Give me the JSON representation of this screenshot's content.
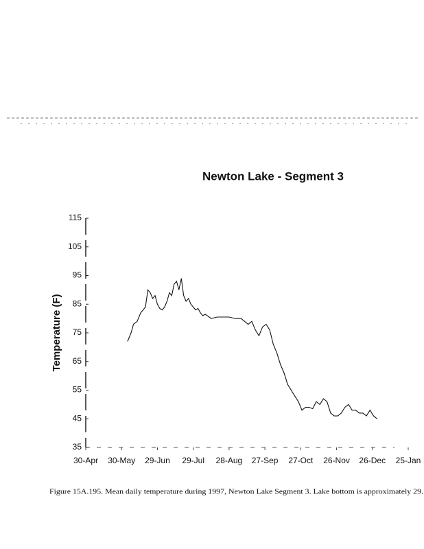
{
  "chart_data": {
    "type": "line",
    "title": "Newton Lake - Segment 3",
    "y_label": "Temperature (F)",
    "caption": "Figure 15A.195. Mean daily temperature during 1997, Newton Lake Segment 3.  Lake bottom is approximately 29.",
    "xlim": [
      0,
      270
    ],
    "xticks": [
      {
        "value": 0,
        "label": "30-Apr"
      },
      {
        "value": 30,
        "label": "30-May"
      },
      {
        "value": 60,
        "label": "29-Jun"
      },
      {
        "value": 90,
        "label": "29-Jul"
      },
      {
        "value": 120,
        "label": "28-Aug"
      },
      {
        "value": 150,
        "label": "27-Sep"
      },
      {
        "value": 180,
        "label": "27-Oct"
      },
      {
        "value": 210,
        "label": "26-Nov"
      },
      {
        "value": 240,
        "label": "26-Dec"
      },
      {
        "value": 270,
        "label": "25-Jan"
      }
    ],
    "ylim": [
      35,
      115
    ],
    "yticks": [
      35,
      45,
      55,
      65,
      75,
      85,
      95,
      105,
      115
    ],
    "x": [
      35,
      38,
      40,
      43,
      46,
      48,
      50,
      52,
      54,
      56,
      58,
      60,
      62,
      64,
      66,
      68,
      70,
      72,
      74,
      76,
      78,
      80,
      82,
      84,
      86,
      88,
      90,
      92,
      94,
      96,
      98,
      100,
      105,
      110,
      115,
      120,
      125,
      130,
      133,
      136,
      139,
      142,
      145,
      148,
      151,
      154,
      157,
      160,
      163,
      166,
      169,
      172,
      175,
      178,
      181,
      184,
      187,
      190,
      193,
      196,
      199,
      202,
      205,
      208,
      211,
      214,
      217,
      220,
      223,
      226,
      229,
      232,
      235,
      238,
      241,
      244
    ],
    "series": [
      {
        "color": "#111111",
        "values": [
          72,
          75,
          78,
          79,
          82,
          83,
          84,
          90,
          89,
          87,
          88,
          85,
          83.5,
          83,
          84,
          86,
          89,
          88,
          92,
          93,
          90,
          94,
          88,
          86,
          87,
          85,
          84,
          83,
          83.5,
          82,
          81,
          81.5,
          80,
          80.5,
          80.5,
          80.5,
          80,
          80,
          79,
          78,
          79,
          76,
          74,
          77,
          78,
          76,
          71,
          68,
          64,
          61,
          57,
          55,
          53,
          51,
          48,
          49,
          49,
          48.5,
          51,
          50,
          52,
          51,
          47,
          46,
          46,
          47,
          49,
          50,
          48,
          48,
          47,
          47,
          46,
          48,
          46,
          45
        ]
      }
    ]
  }
}
